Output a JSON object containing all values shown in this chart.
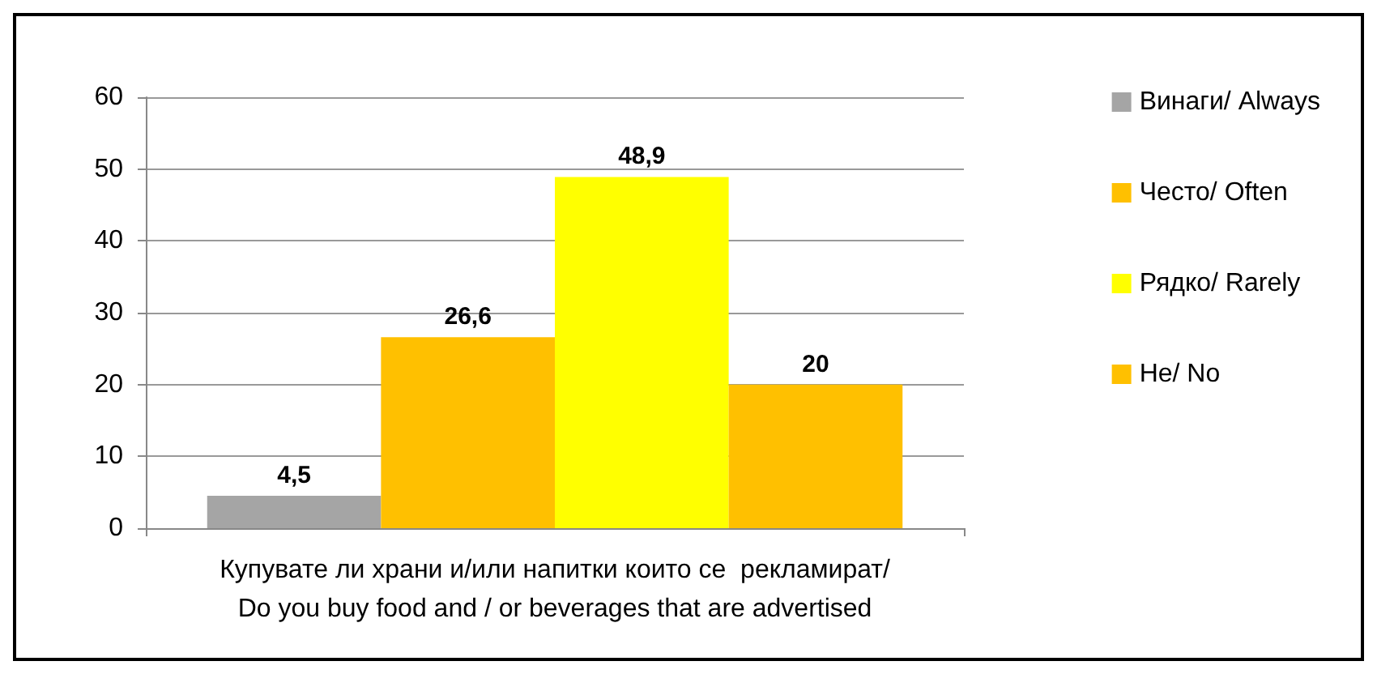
{
  "chart_data": {
    "type": "bar",
    "categories": [
      "Купувате ли храни и/или напитки които се  рекламират/\nDo you buy food and / or beverages that are advertised"
    ],
    "series": [
      {
        "name": "Винаги/ Always",
        "color": "#a5a5a5",
        "values": [
          4.5
        ],
        "value_labels": [
          "4,5"
        ]
      },
      {
        "name": "Често/ Often",
        "color": "#ffc000",
        "values": [
          26.6
        ],
        "value_labels": [
          "26,6"
        ]
      },
      {
        "name": "Рядко/ Rarely",
        "color": "#ffff00",
        "values": [
          48.9
        ],
        "value_labels": [
          "48,9"
        ]
      },
      {
        "name": "Не/ No",
        "color": "#ffc000",
        "values": [
          20
        ],
        "value_labels": [
          "20"
        ]
      }
    ],
    "ylim": [
      0,
      60
    ],
    "yticks": [
      0,
      10,
      20,
      30,
      40,
      50,
      60
    ],
    "grid": "y",
    "legend": "top right"
  }
}
